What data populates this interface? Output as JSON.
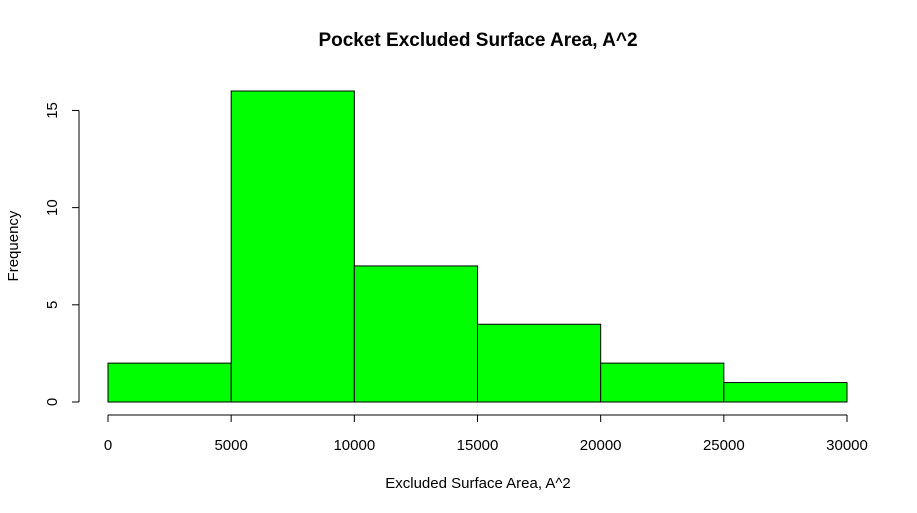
{
  "chart_data": {
    "type": "bar",
    "title": "Pocket Excluded Surface Area, A^2",
    "xlabel": "Excluded Surface Area, A^2",
    "ylabel": "Frequency",
    "bins": [
      {
        "start": 0,
        "end": 5000,
        "count": 2
      },
      {
        "start": 5000,
        "end": 10000,
        "count": 16
      },
      {
        "start": 10000,
        "end": 15000,
        "count": 7
      },
      {
        "start": 15000,
        "end": 20000,
        "count": 4
      },
      {
        "start": 20000,
        "end": 25000,
        "count": 2
      },
      {
        "start": 25000,
        "end": 30000,
        "count": 1
      }
    ],
    "xlim": [
      0,
      30000
    ],
    "ylim": [
      0,
      16
    ],
    "xticks": [
      0,
      5000,
      10000,
      15000,
      20000,
      25000,
      30000
    ],
    "yticks": [
      0,
      5,
      10,
      15
    ],
    "bar_color": "#00ff00",
    "grid": false,
    "legend": "none"
  }
}
